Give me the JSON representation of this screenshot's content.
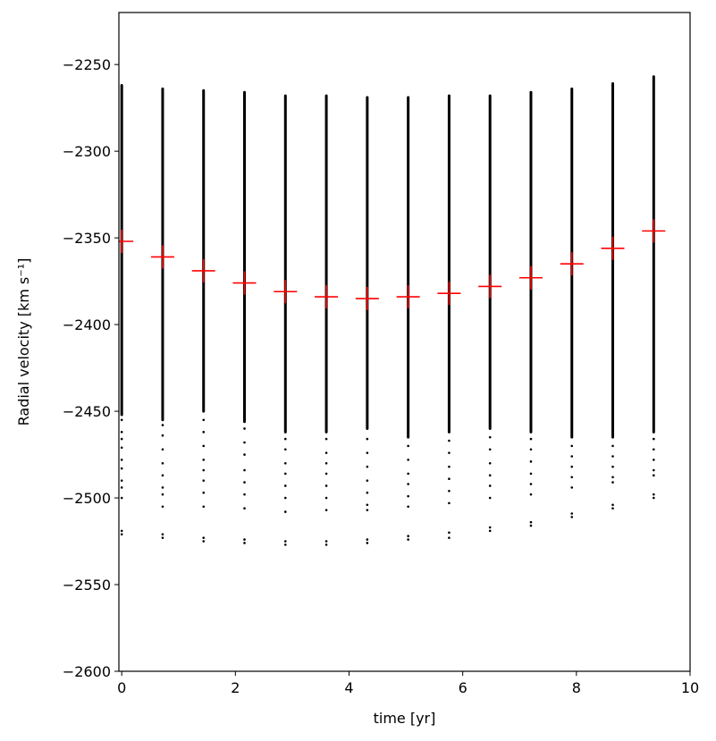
{
  "chart_data": {
    "type": "scatter",
    "xlabel": "time [yr]",
    "ylabel": "Radial velocity [km s⁻¹]",
    "xlim": [
      -0.05,
      10
    ],
    "ylim": [
      -2600,
      -2220
    ],
    "xticks": [
      0,
      2,
      4,
      6,
      8,
      10
    ],
    "yticks": [
      -2600,
      -2550,
      -2500,
      -2450,
      -2400,
      -2350,
      -2300,
      -2250
    ],
    "grid": false,
    "series": [
      {
        "marker": "point",
        "color": "#000000",
        "columns": [
          {
            "x": 0.0,
            "dense": [
              -2452,
              -2262
            ],
            "outliers": [
              -2455,
              -2462,
              -2466,
              -2471,
              -2478,
              -2483,
              -2490,
              -2494,
              -2500,
              -2519,
              -2521
            ]
          },
          {
            "x": 0.72,
            "dense": [
              -2455,
              -2264
            ],
            "outliers": [
              -2458,
              -2464,
              -2472,
              -2480,
              -2487,
              -2494,
              -2498,
              -2505,
              -2521,
              -2523
            ]
          },
          {
            "x": 1.44,
            "dense": [
              -2450,
              -2265
            ],
            "outliers": [
              -2455,
              -2462,
              -2470,
              -2478,
              -2484,
              -2490,
              -2497,
              -2505,
              -2523,
              -2525
            ]
          },
          {
            "x": 2.16,
            "dense": [
              -2456,
              -2266
            ],
            "outliers": [
              -2460,
              -2468,
              -2475,
              -2484,
              -2491,
              -2498,
              -2506,
              -2524,
              -2526
            ]
          },
          {
            "x": 2.88,
            "dense": [
              -2462,
              -2268
            ],
            "outliers": [
              -2466,
              -2472,
              -2480,
              -2486,
              -2493,
              -2500,
              -2508,
              -2525,
              -2527
            ]
          },
          {
            "x": 3.6,
            "dense": [
              -2462,
              -2268
            ],
            "outliers": [
              -2466,
              -2474,
              -2480,
              -2486,
              -2493,
              -2500,
              -2507,
              -2525,
              -2527
            ]
          },
          {
            "x": 4.32,
            "dense": [
              -2460,
              -2269
            ],
            "outliers": [
              -2466,
              -2474,
              -2482,
              -2490,
              -2497,
              -2504,
              -2507,
              -2524,
              -2526
            ]
          },
          {
            "x": 5.04,
            "dense": [
              -2465,
              -2269
            ],
            "outliers": [
              -2470,
              -2478,
              -2486,
              -2492,
              -2499,
              -2505,
              -2522,
              -2524
            ]
          },
          {
            "x": 5.76,
            "dense": [
              -2462,
              -2268
            ],
            "outliers": [
              -2467,
              -2474,
              -2482,
              -2489,
              -2496,
              -2503,
              -2520,
              -2523
            ]
          },
          {
            "x": 6.48,
            "dense": [
              -2460,
              -2268
            ],
            "outliers": [
              -2465,
              -2472,
              -2480,
              -2487,
              -2493,
              -2500,
              -2517,
              -2519
            ]
          },
          {
            "x": 7.2,
            "dense": [
              -2462,
              -2266
            ],
            "outliers": [
              -2466,
              -2472,
              -2479,
              -2486,
              -2492,
              -2498,
              -2514,
              -2516
            ]
          },
          {
            "x": 7.92,
            "dense": [
              -2465,
              -2264
            ],
            "outliers": [
              -2470,
              -2476,
              -2482,
              -2488,
              -2494,
              -2509,
              -2511
            ]
          },
          {
            "x": 8.64,
            "dense": [
              -2465,
              -2261
            ],
            "outliers": [
              -2470,
              -2476,
              -2482,
              -2488,
              -2491,
              -2504,
              -2506
            ]
          },
          {
            "x": 9.36,
            "dense": [
              -2462,
              -2257
            ],
            "outliers": [
              -2466,
              -2472,
              -2478,
              -2484,
              -2487,
              -2498,
              -2500
            ]
          }
        ]
      },
      {
        "marker": "plus",
        "color": "#ff0000",
        "x": [
          0.0,
          0.72,
          1.44,
          2.16,
          2.88,
          3.6,
          4.32,
          5.04,
          5.76,
          6.48,
          7.2,
          7.92,
          8.64,
          9.36
        ],
        "y": [
          -2352,
          -2361,
          -2369,
          -2376,
          -2381,
          -2384,
          -2385,
          -2384,
          -2382,
          -2378,
          -2373,
          -2365,
          -2356,
          -2346
        ]
      }
    ]
  }
}
